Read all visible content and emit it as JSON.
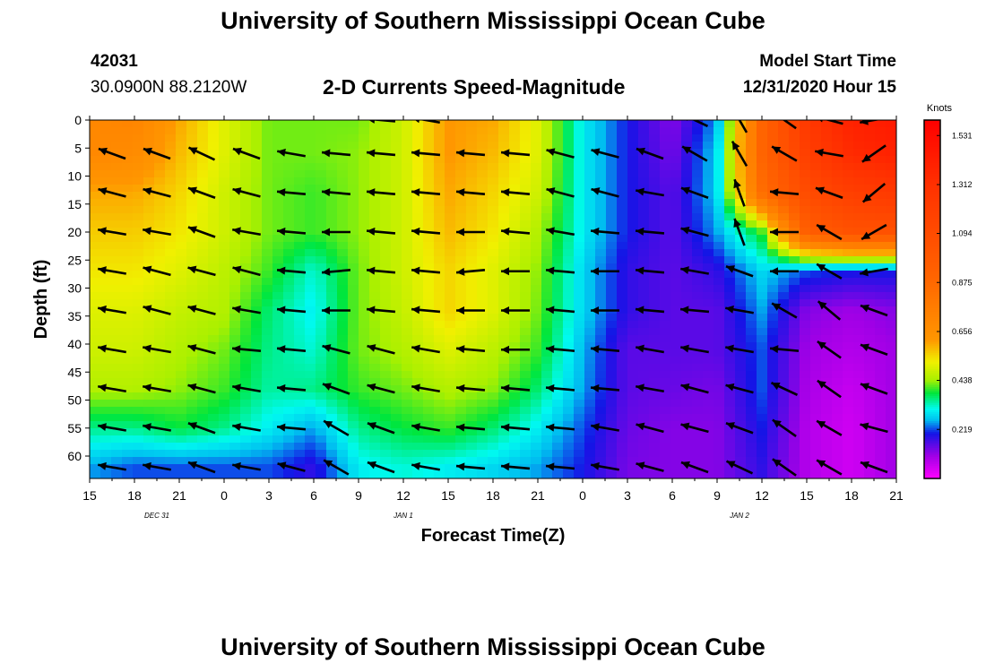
{
  "header": {
    "title": "University of Southern Mississippi Ocean Cube",
    "station_id": "42031",
    "coordinates": "30.0900N 88.2120W",
    "chart_title": "2-D Currents Speed-Magnitude",
    "model_start_label": "Model Start Time",
    "model_start_value": "12/31/2020 Hour 15"
  },
  "footer": {
    "title": "University of Southern Mississippi Ocean Cube"
  },
  "chart_data": {
    "type": "heatmap",
    "title": "2-D Currents Speed-Magnitude",
    "xlabel": "Forecast Time(Z)",
    "ylabel": "Depth (ft)",
    "x_ticks": [
      "15",
      "18",
      "21",
      "0",
      "3",
      "6",
      "9",
      "12",
      "15",
      "18",
      "21",
      "0",
      "3",
      "6",
      "9",
      "12",
      "15",
      "18",
      "21"
    ],
    "date_labels": [
      {
        "label": "DEC 31",
        "near_tick": 1.5
      },
      {
        "label": "JAN 1",
        "near_tick": 7
      },
      {
        "label": "JAN 2",
        "near_tick": 14.5
      }
    ],
    "y_ticks": [
      0,
      5,
      10,
      15,
      20,
      25,
      30,
      35,
      40,
      45,
      50,
      55,
      60
    ],
    "ylim": [
      0,
      64
    ],
    "legend": {
      "title": "Knots",
      "ticks": [
        1.531,
        1.312,
        1.094,
        0.875,
        0.656,
        0.438,
        0.219
      ],
      "range": [
        0,
        1.6
      ],
      "placement": "right"
    },
    "speed_grid": {
      "x_step_hours": 3,
      "depths": [
        0,
        6,
        13,
        20,
        27,
        34,
        41,
        48,
        55,
        62
      ],
      "values": [
        [
          0.7,
          0.72,
          0.6,
          0.5,
          0.42,
          0.42,
          0.42,
          0.48,
          0.62,
          0.6,
          0.5,
          0.3,
          0.2,
          0.12,
          0.25,
          0.9,
          1.25,
          1.4,
          1.45
        ],
        [
          0.7,
          0.68,
          0.58,
          0.5,
          0.42,
          0.42,
          0.43,
          0.48,
          0.62,
          0.58,
          0.5,
          0.3,
          0.2,
          0.13,
          0.28,
          0.9,
          1.2,
          1.35,
          1.4
        ],
        [
          0.6,
          0.6,
          0.55,
          0.48,
          0.42,
          0.4,
          0.43,
          0.48,
          0.6,
          0.55,
          0.48,
          0.3,
          0.2,
          0.15,
          0.28,
          0.85,
          1.1,
          1.2,
          1.25
        ],
        [
          0.56,
          0.56,
          0.53,
          0.48,
          0.42,
          0.4,
          0.43,
          0.48,
          0.58,
          0.53,
          0.45,
          0.3,
          0.2,
          0.15,
          0.25,
          0.4,
          0.95,
          1.05,
          1.05
        ],
        [
          0.53,
          0.53,
          0.5,
          0.46,
          0.4,
          0.32,
          0.42,
          0.48,
          0.55,
          0.5,
          0.43,
          0.28,
          0.18,
          0.15,
          0.18,
          0.28,
          0.22,
          0.2,
          0.2
        ],
        [
          0.5,
          0.5,
          0.47,
          0.45,
          0.36,
          0.3,
          0.42,
          0.47,
          0.55,
          0.5,
          0.42,
          0.28,
          0.18,
          0.15,
          0.15,
          0.25,
          0.12,
          0.1,
          0.12
        ],
        [
          0.48,
          0.48,
          0.45,
          0.42,
          0.35,
          0.32,
          0.42,
          0.45,
          0.5,
          0.46,
          0.4,
          0.26,
          0.15,
          0.15,
          0.15,
          0.22,
          0.1,
          0.08,
          0.1
        ],
        [
          0.45,
          0.45,
          0.43,
          0.4,
          0.34,
          0.35,
          0.4,
          0.42,
          0.45,
          0.43,
          0.36,
          0.25,
          0.15,
          0.14,
          0.13,
          0.22,
          0.09,
          0.06,
          0.1
        ],
        [
          0.35,
          0.35,
          0.38,
          0.35,
          0.3,
          0.25,
          0.35,
          0.38,
          0.4,
          0.36,
          0.3,
          0.22,
          0.14,
          0.12,
          0.12,
          0.2,
          0.08,
          0.05,
          0.1
        ],
        [
          0.25,
          0.22,
          0.22,
          0.22,
          0.22,
          0.18,
          0.3,
          0.32,
          0.3,
          0.28,
          0.25,
          0.2,
          0.13,
          0.12,
          0.12,
          0.18,
          0.08,
          0.05,
          0.1
        ]
      ]
    },
    "vectors": {
      "x_positions_hours": [
        1.5,
        4.5,
        7.5,
        10.5,
        13.5,
        16.5,
        19.5,
        22.5,
        25.5,
        28.5,
        31.5,
        34.5,
        37.5,
        40.5,
        43.5,
        46.5,
        49.5,
        52.5
      ],
      "depths": [
        0,
        6,
        13,
        20,
        27,
        34,
        41,
        48,
        55,
        62
      ],
      "angles_deg": [
        [
          null,
          null,
          null,
          null,
          null,
          null,
          175,
          170,
          null,
          null,
          null,
          null,
          null,
          155,
          120,
          145,
          165,
          190
        ],
        [
          160,
          160,
          155,
          160,
          170,
          175,
          175,
          175,
          175,
          175,
          165,
          165,
          160,
          150,
          120,
          150,
          170,
          215
        ],
        [
          165,
          165,
          160,
          165,
          175,
          175,
          175,
          175,
          175,
          175,
          165,
          165,
          170,
          160,
          110,
          175,
          160,
          220
        ],
        [
          170,
          170,
          160,
          170,
          175,
          180,
          175,
          175,
          180,
          175,
          170,
          175,
          175,
          165,
          110,
          180,
          150,
          210
        ],
        [
          170,
          165,
          165,
          165,
          175,
          185,
          175,
          175,
          185,
          180,
          175,
          180,
          175,
          170,
          160,
          180,
          150,
          190
        ],
        [
          170,
          165,
          165,
          170,
          175,
          180,
          175,
          175,
          180,
          180,
          175,
          180,
          175,
          175,
          170,
          150,
          140,
          160
        ],
        [
          170,
          170,
          165,
          175,
          175,
          165,
          165,
          170,
          175,
          180,
          175,
          175,
          170,
          170,
          170,
          175,
          145,
          160
        ],
        [
          170,
          170,
          165,
          170,
          175,
          160,
          165,
          170,
          175,
          175,
          175,
          175,
          170,
          165,
          165,
          155,
          145,
          160
        ],
        [
          170,
          170,
          160,
          170,
          175,
          150,
          160,
          170,
          175,
          175,
          175,
          170,
          165,
          165,
          160,
          145,
          150,
          165
        ],
        [
          170,
          170,
          160,
          170,
          165,
          150,
          160,
          170,
          175,
          175,
          175,
          170,
          165,
          160,
          155,
          145,
          150,
          160
        ]
      ]
    }
  }
}
